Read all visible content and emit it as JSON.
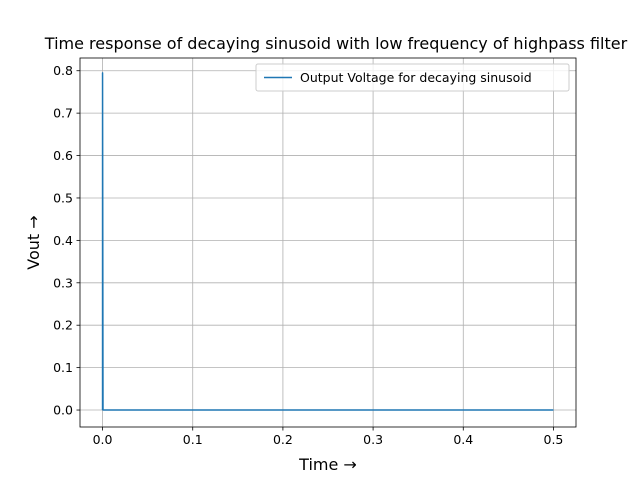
{
  "chart_data": {
    "type": "line",
    "title": "Time response of decaying sinusoid with low frequency of highpass filter",
    "xlabel": "Time →",
    "ylabel": "Vout →",
    "xlim": [
      -0.025,
      0.525
    ],
    "ylim": [
      -0.04,
      0.83
    ],
    "xticks": [
      0.0,
      0.1,
      0.2,
      0.3,
      0.4,
      0.5
    ],
    "xtick_labels": [
      "0.0",
      "0.1",
      "0.2",
      "0.3",
      "0.4",
      "0.5"
    ],
    "yticks": [
      0.0,
      0.1,
      0.2,
      0.3,
      0.4,
      0.5,
      0.6,
      0.7,
      0.8
    ],
    "ytick_labels": [
      "0.0",
      "0.1",
      "0.2",
      "0.3",
      "0.4",
      "0.5",
      "0.6",
      "0.7",
      "0.8"
    ],
    "grid": true,
    "legend_position": "top-right",
    "series": [
      {
        "name": "Output Voltage for decaying sinusoid",
        "color": "#1f77b4",
        "x": [
          0.0,
          0.0,
          0.0005,
          0.001,
          0.1,
          0.2,
          0.3,
          0.4,
          0.5
        ],
        "y": [
          0.0,
          0.795,
          0.0,
          0.0,
          0.0,
          0.0,
          0.0,
          0.0,
          0.0
        ]
      }
    ]
  }
}
